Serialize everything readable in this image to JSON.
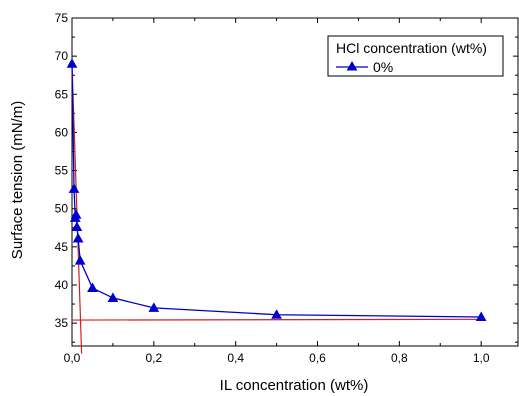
{
  "chart_data": {
    "type": "line",
    "xlabel": "IL concentration (wt%)",
    "ylabel": "Surface tension (mN/m)",
    "xlim": [
      0,
      1.09
    ],
    "ylim": [
      32,
      75
    ],
    "x_ticks": [
      0,
      0.2,
      0.4,
      0.6,
      0.8,
      1.0
    ],
    "x_tick_labels": [
      "0,0",
      "0,2",
      "0,4",
      "0,6",
      "0,8",
      "1,0"
    ],
    "y_ticks": [
      35,
      40,
      45,
      50,
      55,
      60,
      65,
      70,
      75
    ],
    "y_tick_labels": [
      "35",
      "40",
      "45",
      "50",
      "55",
      "60",
      "65",
      "70",
      "75"
    ],
    "legend": {
      "title": "HCl concentration (wt%)",
      "position": "top-right"
    },
    "series": [
      {
        "name": "0%",
        "color": "#0000cc",
        "marker": "triangle",
        "x": [
          0.0,
          0.005,
          0.008,
          0.01,
          0.012,
          0.015,
          0.02,
          0.05,
          0.1,
          0.2,
          0.5,
          1.0
        ],
        "y": [
          69.0,
          52.6,
          48.8,
          49.2,
          47.6,
          46.1,
          43.2,
          39.6,
          38.3,
          37.0,
          36.1,
          35.8
        ]
      }
    ],
    "fit_lines": [
      {
        "color": "#cc2222",
        "x": [
          0.0,
          0.0235
        ],
        "y": [
          69.0,
          31.0
        ]
      },
      {
        "color": "#cc2222",
        "x": [
          0.0,
          1.0
        ],
        "y": [
          35.4,
          35.5
        ]
      }
    ],
    "grid": false
  }
}
